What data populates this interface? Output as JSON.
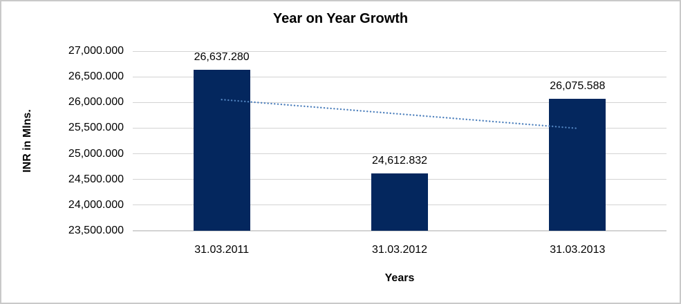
{
  "chart_data": {
    "type": "bar",
    "title": "Year on Year Growth",
    "xlabel": "Years",
    "ylabel": "INR in Mlns.",
    "categories": [
      "31.03.2011",
      "31.03.2012",
      "31.03.2013"
    ],
    "values": [
      26637.28,
      24612.832,
      26075.588
    ],
    "value_labels": [
      "26,637.280",
      "24,612.832",
      "26,075.588"
    ],
    "ylim": [
      23500,
      27000
    ],
    "ytick_step": 500,
    "yticks": [
      {
        "label": "27,000.000",
        "value": 27000
      },
      {
        "label": "26,500.000",
        "value": 26500
      },
      {
        "label": "26,000.000",
        "value": 26000
      },
      {
        "label": "25,500.000",
        "value": 25500
      },
      {
        "label": "25,000.000",
        "value": 25000
      },
      {
        "label": "24,500.000",
        "value": 24500
      },
      {
        "label": "24,000.000",
        "value": 24000
      },
      {
        "label": "23,500.000",
        "value": 23500
      }
    ],
    "grid": "horizontal",
    "legend": "none",
    "trendline": {
      "type": "linear",
      "style": "dotted",
      "start_value": 26056,
      "end_value": 25495,
      "color": "#4F81BD"
    },
    "colors": {
      "bar": "#04275E",
      "gridline": "#D3D3D3",
      "axis_line": "#D3D3D3",
      "text": "#000000",
      "frame_border": "#C9C9C9",
      "background": "#FFFFFF"
    }
  }
}
